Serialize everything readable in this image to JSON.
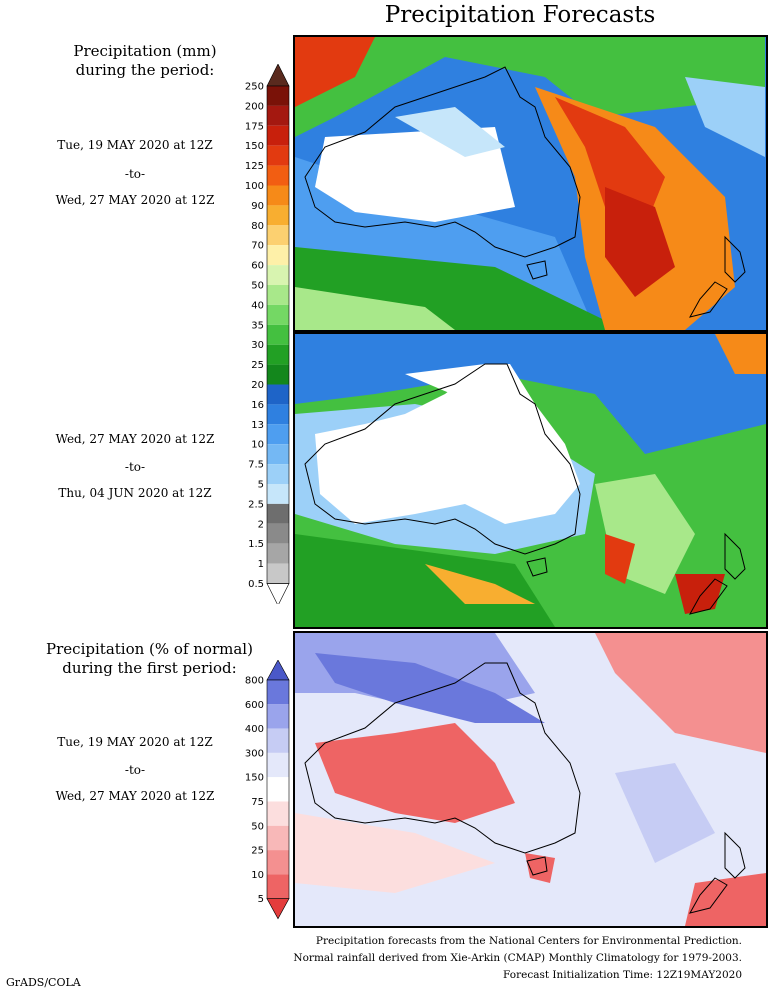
{
  "title": "Precipitation Forecasts",
  "precip_header": [
    "Precipitation (mm)",
    "during the period:"
  ],
  "period1": {
    "start": "Tue, 19 MAY 2020 at 12Z",
    "to": "-to-",
    "end": "Wed, 27 MAY 2020 at 12Z"
  },
  "period2": {
    "start": "Wed, 27 MAY 2020 at 12Z",
    "to": "-to-",
    "end": "Thu, 04 JUN 2020 at 12Z"
  },
  "pct_header": [
    "Precipitation (% of normal)",
    "during the first period:"
  ],
  "period3": {
    "start": "Tue, 19 MAY 2020 at 12Z",
    "to": "-to-",
    "end": "Wed, 27 MAY 2020 at 12Z"
  },
  "precip_scale": {
    "labels": [
      "250",
      "200",
      "175",
      "150",
      "125",
      "100",
      "90",
      "80",
      "70",
      "60",
      "50",
      "40",
      "35",
      "30",
      "25",
      "20",
      "16",
      "13",
      "10",
      "7.5",
      "5",
      "2.5",
      "2",
      "1.5",
      "1",
      "0.5"
    ],
    "colors": [
      "#5a2a1e",
      "#7a1208",
      "#a41810",
      "#c8200c",
      "#e23a10",
      "#f25e12",
      "#f68a18",
      "#f8ae30",
      "#fcd070",
      "#fef0a8",
      "#d8f4b0",
      "#a8e88a",
      "#74d864",
      "#44c040",
      "#22a024",
      "#13871c",
      "#1e64c8",
      "#2f80e0",
      "#4e9ef0",
      "#74b8f4",
      "#9cd0f8",
      "#c6e6fa",
      "#6e6e6e",
      "#8a8a8a",
      "#a6a6a6",
      "#c8c8c8",
      "#ffffff"
    ]
  },
  "pct_scale": {
    "labels": [
      "800",
      "600",
      "400",
      "300",
      "150",
      "75",
      "50",
      "25",
      "10",
      "5"
    ],
    "colors": [
      "#4a58c8",
      "#6a78dc",
      "#9aa4ec",
      "#c6ccf4",
      "#e4e8fa",
      "#ffffff",
      "#fcdede",
      "#f8b8b8",
      "#f49090",
      "#ee6464",
      "#e43c3c"
    ]
  },
  "footer": [
    "Precipitation forecasts from the National Centers for Environmental Prediction.",
    "Normal rainfall derived from Xie-Arkin (CMAP) Monthly Climatology for 1979-2003.",
    "Forecast Initialization Time: 12Z19MAY2020"
  ],
  "credit": "GrADS/COLA"
}
